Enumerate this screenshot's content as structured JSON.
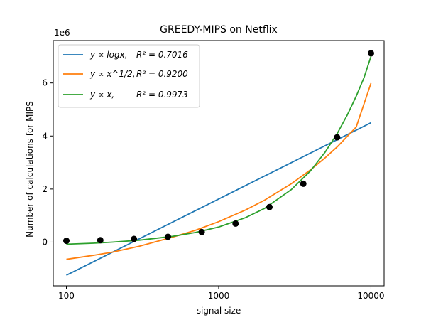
{
  "chart_data": {
    "type": "line",
    "title": "GREEDY-MIPS on Netflix",
    "xlabel": "signal size",
    "ylabel": "Number of calculations for MIPS",
    "y_offset_label": "1e6",
    "x_scale": "log",
    "xlim": [
      82,
      12200
    ],
    "ylim": [
      -1.65,
      7.6
    ],
    "y_unit_multiplier": 1000000,
    "x_ticks": [
      {
        "value": 100,
        "label": "100"
      },
      {
        "value": 1000,
        "label": "1000"
      },
      {
        "value": 10000,
        "label": "10000"
      }
    ],
    "y_ticks": [
      {
        "value": 0,
        "label": "0"
      },
      {
        "value": 2,
        "label": "2"
      },
      {
        "value": 4,
        "label": "4"
      },
      {
        "value": 6,
        "label": "6"
      }
    ],
    "grid": false,
    "legend_position": "top-left",
    "series": [
      {
        "name": "logx_fit",
        "label_math": "y ∝ logx,",
        "label_r2": "R² = 0.7016",
        "color": "#1f77b4",
        "x": [
          100,
          10000
        ],
        "y": [
          -1.25,
          4.5
        ]
      },
      {
        "name": "sqrt_fit",
        "label_math": "y ∝ x^1/2,",
        "label_r2": "R² = 0.9200",
        "color": "#ff7f0e",
        "x": [
          100,
          150,
          200,
          300,
          500,
          700,
          1000,
          1500,
          2000,
          3000,
          4000,
          5000,
          6000,
          8000,
          10000
        ],
        "y": [
          -0.65,
          -0.5,
          -0.38,
          -0.16,
          0.19,
          0.44,
          0.77,
          1.21,
          1.58,
          2.2,
          2.72,
          3.18,
          3.59,
          4.34,
          5.99
        ]
      },
      {
        "name": "linear_fit",
        "label_math": "y ∝ x,",
        "label_r2": "R² = 0.9973",
        "color": "#2ca02c",
        "x": [
          100,
          150,
          200,
          300,
          500,
          700,
          1000,
          1500,
          2000,
          3000,
          4000,
          5000,
          6000,
          7000,
          8000,
          9000,
          10000
        ],
        "y": [
          -0.08,
          -0.04,
          0.0,
          0.07,
          0.22,
          0.36,
          0.57,
          0.92,
          1.27,
          1.98,
          2.68,
          3.39,
          4.09,
          4.8,
          5.5,
          6.2,
          7.0
        ]
      }
    ],
    "points": {
      "color": "#000000",
      "x": [
        100,
        167,
        278,
        464,
        774,
        1292,
        2154,
        3594,
        5995,
        10000
      ],
      "y": [
        0.05,
        0.07,
        0.12,
        0.2,
        0.38,
        0.7,
        1.32,
        2.2,
        3.95,
        7.12
      ]
    }
  },
  "legend": [
    {
      "math": "y ∝ logx,",
      "r2": "R² = 0.7016"
    },
    {
      "math": "y ∝ x^1/2,",
      "r2": "R² = 0.9200"
    },
    {
      "math": "y ∝ x,",
      "r2": "R² = 0.9973"
    }
  ]
}
